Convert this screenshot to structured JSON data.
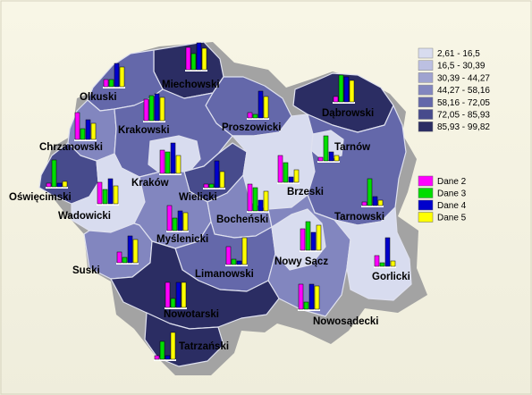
{
  "map": {
    "legend_classes": [
      {
        "label": "2,61 - 16,5",
        "color": "#d8dcef"
      },
      {
        "label": "16,5 - 30,39",
        "color": "#bcc0e2"
      },
      {
        "label": "30,39 - 44,27",
        "color": "#9fa3d0"
      },
      {
        "label": "44,27 - 58,16",
        "color": "#8286bf"
      },
      {
        "label": "58,16 - 72,05",
        "color": "#6468aa"
      },
      {
        "label": "72,05 - 85,93",
        "color": "#474b8c"
      },
      {
        "label": "85,93 - 99,82",
        "color": "#2b2d63"
      }
    ],
    "legend_series": [
      {
        "label": "Dane 2",
        "color": "#ff00ff"
      },
      {
        "label": "Dane 3",
        "color": "#00dd00"
      },
      {
        "label": "Dane 4",
        "color": "#0000cc"
      },
      {
        "label": "Dane 5",
        "color": "#ffff00"
      }
    ],
    "districts": [
      {
        "name": "Miechowski",
        "values": [
          25,
          18,
          30,
          24
        ]
      },
      {
        "name": "Olkuski",
        "values": [
          8,
          8,
          26,
          22
        ]
      },
      {
        "name": "Krakowski",
        "values": [
          24,
          28,
          30,
          26
        ]
      },
      {
        "name": "Proszowicki",
        "values": [
          6,
          4,
          30,
          24
        ]
      },
      {
        "name": "Dąbrowski",
        "values": [
          6,
          30,
          28,
          24
        ]
      },
      {
        "name": "Chrzanowski",
        "values": [
          30,
          12,
          22,
          18
        ]
      },
      {
        "name": "Tarnów",
        "values": [
          4,
          28,
          10,
          6
        ]
      },
      {
        "name": "Kraków",
        "values": [
          26,
          24,
          34,
          20
        ]
      },
      {
        "name": "Wielicki",
        "values": [
          4,
          4,
          30,
          18
        ]
      },
      {
        "name": "Oświęcimski",
        "values": [
          4,
          30,
          4,
          6
        ]
      },
      {
        "name": "Brzeski",
        "values": [
          30,
          22,
          6,
          14
        ]
      },
      {
        "name": "Wadowicki",
        "values": [
          24,
          16,
          28,
          20
        ]
      },
      {
        "name": "Tarnowski",
        "values": [
          4,
          30,
          10,
          6
        ]
      },
      {
        "name": "Bocheński",
        "values": [
          30,
          26,
          12,
          22
        ]
      },
      {
        "name": "Myślenicki",
        "values": [
          28,
          14,
          22,
          20
        ]
      },
      {
        "name": "Suski",
        "values": [
          12,
          6,
          30,
          26
        ]
      },
      {
        "name": "Limanowski",
        "values": [
          20,
          6,
          4,
          30
        ]
      },
      {
        "name": "Nowy Sącz",
        "values": [
          24,
          32,
          20,
          28
        ]
      },
      {
        "name": "Gorlicki",
        "values": [
          12,
          4,
          32,
          6
        ]
      },
      {
        "name": "Nowotarski",
        "values": [
          28,
          10,
          28,
          28
        ]
      },
      {
        "name": "Nowosądecki",
        "values": [
          28,
          8,
          28,
          26
        ]
      },
      {
        "name": "Tatrzański",
        "values": [
          4,
          20,
          4,
          30
        ]
      }
    ]
  }
}
